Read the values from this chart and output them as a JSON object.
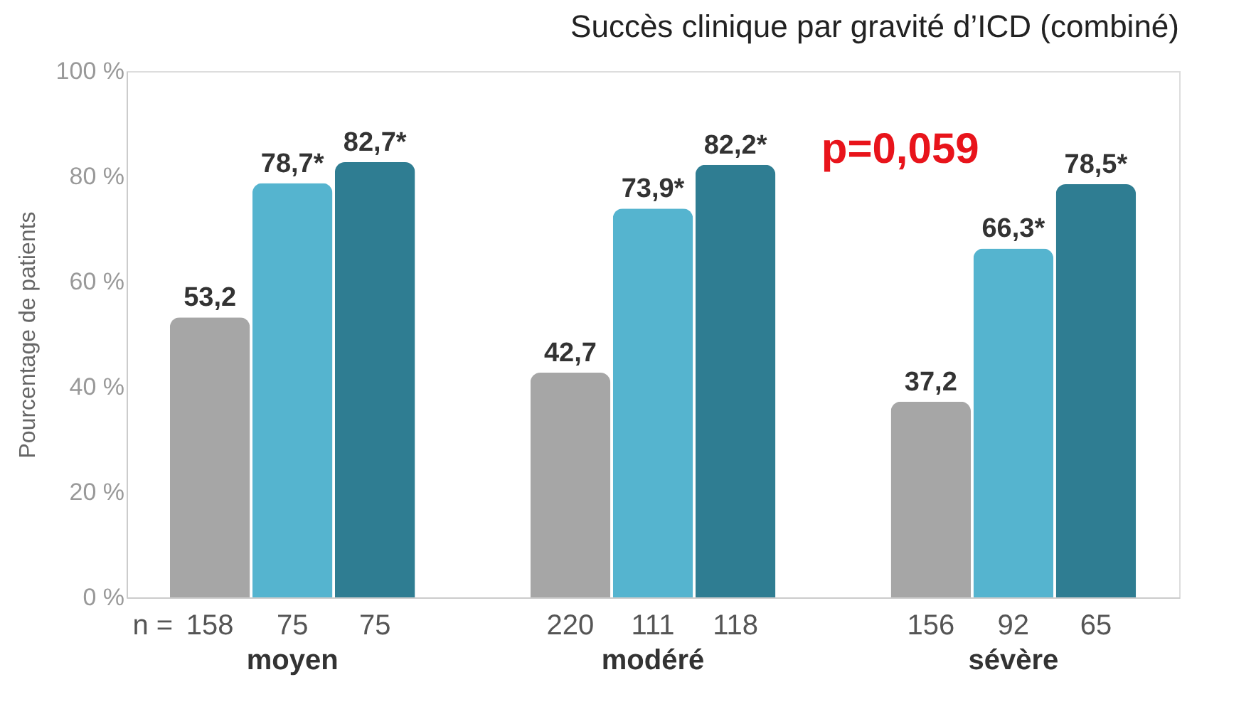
{
  "chart_data": {
    "type": "bar",
    "title": "Succès clinique par gravité d’ICD (combiné)",
    "ylabel": "Pourcentage de patients",
    "categories": [
      "moyen",
      "modéré",
      "sévère"
    ],
    "series": [
      {
        "color": "#a6a6a6",
        "values": [
          53.2,
          42.7,
          37.2
        ],
        "value_labels": [
          "53,2",
          "42,7",
          "37,2"
        ]
      },
      {
        "color": "#55b4cf",
        "values": [
          78.7,
          73.9,
          66.3
        ],
        "value_labels": [
          "78,7*",
          "73,9*",
          "66,3*"
        ]
      },
      {
        "color": "#2f7d92",
        "values": [
          82.7,
          82.2,
          78.5
        ],
        "value_labels": [
          "82,7*",
          "82,2*",
          "78,5*"
        ]
      }
    ],
    "ylim": [
      0,
      100
    ],
    "yticks": [
      {
        "value": 0,
        "label": "0 %"
      },
      {
        "value": 20,
        "label": "20 %"
      },
      {
        "value": 40,
        "label": "40 %"
      },
      {
        "value": 60,
        "label": "60 %"
      },
      {
        "value": 80,
        "label": "80 %"
      },
      {
        "value": 100,
        "label": "100 %"
      }
    ],
    "grid": false,
    "annotations": [
      "p=0,059",
      "n =",
      "158",
      "75",
      "75",
      "220",
      "111",
      "118",
      "156",
      "92",
      "65"
    ]
  }
}
